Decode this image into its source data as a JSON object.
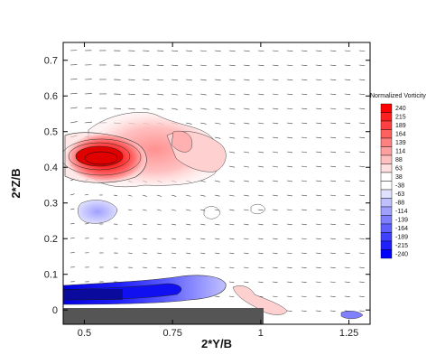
{
  "chart_data": {
    "type": "heatmap",
    "xlabel": "2*Y/B",
    "ylabel": "2*Z/B",
    "xlim": [
      0.44,
      1.31
    ],
    "ylim": [
      -0.04,
      0.75
    ],
    "x_ticks": [
      {
        "value": 0.5,
        "label": "0.5"
      },
      {
        "value": 0.75,
        "label": "0.75"
      },
      {
        "value": 1.0,
        "label": "1"
      },
      {
        "value": 1.25,
        "label": "1.25"
      }
    ],
    "y_ticks": [
      {
        "value": 0.0,
        "label": "0"
      },
      {
        "value": 0.1,
        "label": "0.1"
      },
      {
        "value": 0.2,
        "label": "0.2"
      },
      {
        "value": 0.3,
        "label": "0.3"
      },
      {
        "value": 0.4,
        "label": "0.4"
      },
      {
        "value": 0.5,
        "label": "0.5"
      },
      {
        "value": 0.6,
        "label": "0.6"
      },
      {
        "value": 0.7,
        "label": "0.7"
      }
    ],
    "legend": {
      "title": "Normalized Vorticity",
      "position": "right",
      "levels": [
        "240",
        "215",
        "189",
        "164",
        "139",
        "114",
        "88",
        "63",
        "38",
        "-38",
        "-63",
        "-88",
        "-114",
        "-139",
        "-164",
        "-189",
        "-215",
        "-240"
      ],
      "colors": [
        "#ff0000",
        "#ff2020",
        "#ff4040",
        "#ff6060",
        "#ff8080",
        "#ffa0a0",
        "#ffc0c0",
        "#ffe0e0",
        "#ffffff",
        "#ffffff",
        "#e0e0ff",
        "#c0c0ff",
        "#a0a0ff",
        "#8080ff",
        "#6060ff",
        "#4040ff",
        "#2020ff",
        "#0000ff"
      ]
    },
    "features": [
      {
        "kind": "positive-vortex",
        "center_x": 0.55,
        "center_y": 0.415,
        "peak": 240
      },
      {
        "kind": "positive-shear-layer",
        "x_range": [
          0.5,
          0.98
        ],
        "y_range": [
          0.31,
          0.52
        ],
        "peak": 114
      },
      {
        "kind": "negative-patch",
        "center_x": 0.55,
        "center_y": 0.25,
        "peak": -88
      },
      {
        "kind": "negative-boundary-layer",
        "x_range": [
          0.44,
          0.9
        ],
        "y_range": [
          0.01,
          0.1
        ],
        "peak": -240
      },
      {
        "kind": "wing-surface",
        "x_range": [
          0.44,
          1.0
        ],
        "y": 0.0
      }
    ],
    "grid": false
  }
}
